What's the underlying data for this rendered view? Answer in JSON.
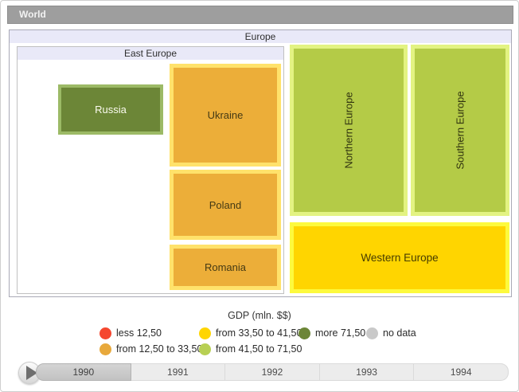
{
  "breadcrumb": {
    "label": "World"
  },
  "treemap": {
    "europe": {
      "label": "Europe"
    },
    "east_europe": {
      "label": "East Europe"
    },
    "nodes": {
      "russia": {
        "label": "Russia",
        "fill": "#6c8637",
        "border": "#9cba66",
        "text_color": "#fbfbef"
      },
      "ukraine": {
        "label": "Ukraine",
        "fill": "#ecae39",
        "border": "#ffe26b",
        "text_color": "#453a14"
      },
      "poland": {
        "label": "Poland",
        "fill": "#ecae39",
        "border": "#ffe26b",
        "text_color": "#453a14"
      },
      "romania": {
        "label": "Romania",
        "fill": "#ecae39",
        "border": "#ffe26b",
        "text_color": "#453a14"
      },
      "northern": {
        "label": "Northern Europe",
        "fill": "#b4cb47",
        "border": "#e3f382",
        "text_color": "#30330f"
      },
      "southern": {
        "label": "Southern Europe",
        "fill": "#b4cb47",
        "border": "#e3f382",
        "text_color": "#30330f"
      },
      "western": {
        "label": "Western Europe",
        "fill": "#ffd500",
        "border": "#fdfa3e",
        "text_color": "#463c00"
      }
    }
  },
  "legend": {
    "title": "GDP (mln. $$)",
    "items": [
      {
        "label": "less 12,50",
        "color": "#f5472f"
      },
      {
        "label": "from 12,50 to 33,50",
        "color": "#e8a93c"
      },
      {
        "label": "from 33,50 to 41,50",
        "color": "#ffd500"
      },
      {
        "label": "from 41,50 to 71,50",
        "color": "#b8d054"
      },
      {
        "label": "more 71,50",
        "color": "#6c8637"
      },
      {
        "label": "no data",
        "color": "#c9c9c9"
      }
    ]
  },
  "timeline": {
    "selected_year": "1990",
    "years": [
      "1990",
      "1991",
      "1992",
      "1993",
      "1994"
    ]
  },
  "chart_data": {
    "type": "treemap",
    "title": "GDP (mln. $$)",
    "hierarchy": {
      "name": "World",
      "children": [
        {
          "name": "Europe",
          "children": [
            {
              "name": "East Europe",
              "children": [
                {
                  "name": "Russia",
                  "gdp_bin": "more 71,50"
                },
                {
                  "name": "Ukraine",
                  "gdp_bin": "from 12,50 to 33,50"
                },
                {
                  "name": "Poland",
                  "gdp_bin": "from 12,50 to 33,50"
                },
                {
                  "name": "Romania",
                  "gdp_bin": "from 12,50 to 33,50"
                }
              ]
            },
            {
              "name": "Northern Europe",
              "gdp_bin": "from 41,50 to 71,50"
            },
            {
              "name": "Southern Europe",
              "gdp_bin": "from 41,50 to 71,50"
            },
            {
              "name": "Western Europe",
              "gdp_bin": "from 33,50 to 41,50"
            }
          ]
        }
      ]
    },
    "legend_bins": [
      {
        "label": "less 12,50",
        "color": "#f5472f"
      },
      {
        "label": "from 12,50 to 33,50",
        "color": "#e8a93c"
      },
      {
        "label": "from 33,50 to 41,50",
        "color": "#ffd500"
      },
      {
        "label": "from 41,50 to 71,50",
        "color": "#b8d054"
      },
      {
        "label": "more 71,50",
        "color": "#6c8637"
      },
      {
        "label": "no data",
        "color": "#c9c9c9"
      }
    ],
    "timeline_years": [
      "1990",
      "1991",
      "1992",
      "1993",
      "1994"
    ],
    "current_year": "1990"
  }
}
